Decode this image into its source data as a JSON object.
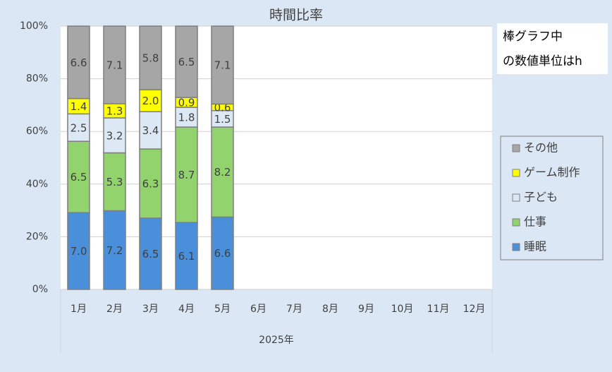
{
  "chart_data": {
    "type": "bar",
    "stacking": "percent",
    "title": "時間比率",
    "categories": [
      "1月",
      "2月",
      "3月",
      "4月",
      "5月",
      "6月",
      "7月",
      "8月",
      "9月",
      "10月",
      "11月",
      "12月"
    ],
    "x_group_label": "2025年",
    "annotation": [
      "棒グラフ中",
      "の数値単位はh"
    ],
    "series": [
      {
        "name": "睡眠",
        "color": "#4a8fd9",
        "values": [
          7.0,
          7.2,
          6.5,
          6.1,
          6.6,
          null,
          null,
          null,
          null,
          null,
          null,
          null
        ],
        "value_labels": [
          "7.0",
          "7.2",
          "6.5",
          "6.1",
          "6.6",
          null,
          null,
          null,
          null,
          null,
          null,
          null
        ]
      },
      {
        "name": "仕事",
        "color": "#92d36e",
        "values": [
          6.5,
          5.3,
          6.3,
          8.7,
          8.2,
          null,
          null,
          null,
          null,
          null,
          null,
          null
        ],
        "value_labels": [
          "6.5",
          "5.3",
          "6.3",
          "8.7",
          "8.2",
          null,
          null,
          null,
          null,
          null,
          null,
          null
        ]
      },
      {
        "name": "子ども",
        "color": "#dde8f5",
        "values": [
          2.5,
          3.2,
          3.4,
          1.8,
          1.5,
          null,
          null,
          null,
          null,
          null,
          null,
          null
        ],
        "value_labels": [
          "2.5",
          "3.2",
          "3.4",
          "1.8",
          "1.5",
          null,
          null,
          null,
          null,
          null,
          null,
          null
        ]
      },
      {
        "name": "ゲーム制作",
        "color": "#ffff00",
        "values": [
          1.4,
          1.3,
          2.0,
          0.9,
          0.6,
          null,
          null,
          null,
          null,
          null,
          null,
          null
        ],
        "value_labels": [
          "1.4",
          "1.3",
          "2.0",
          "0.9",
          "0.6",
          null,
          null,
          null,
          null,
          null,
          null,
          null
        ]
      },
      {
        "name": "その他",
        "color": "#a6a6a6",
        "values": [
          6.6,
          7.1,
          5.8,
          6.5,
          7.1,
          null,
          null,
          null,
          null,
          null,
          null,
          null
        ],
        "value_labels": [
          "6.6",
          "7.1",
          "5.8",
          "6.5",
          "7.1",
          null,
          null,
          null,
          null,
          null,
          null,
          null
        ]
      }
    ],
    "ylim": [
      0,
      100
    ],
    "yticks": [
      {
        "value": 0,
        "label": "0%"
      },
      {
        "value": 20,
        "label": "20%"
      },
      {
        "value": 40,
        "label": "40%"
      },
      {
        "value": 60,
        "label": "60%"
      },
      {
        "value": 80,
        "label": "80%"
      },
      {
        "value": 100,
        "label": "100%"
      }
    ],
    "grid": true,
    "legend": "right"
  }
}
